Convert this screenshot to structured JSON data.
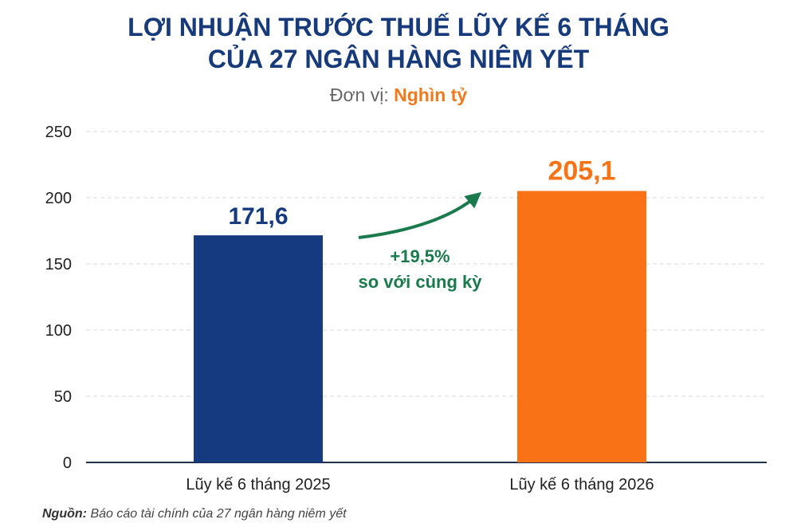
{
  "title_lines": [
    "LỢI NHUẬN TRƯỚC THUẾ LŨY KẾ 6 THÁNG",
    "CỦA 27 NGÂN HÀNG NIÊM YẾT"
  ],
  "unit": {
    "label": "Đơn vị:",
    "value": "Nghìn tỷ"
  },
  "annotation": {
    "change": "+19,5%",
    "note": "so với cùng kỳ"
  },
  "source": {
    "label": "Nguồn:",
    "text": "Báo cáo tài chính của 27 ngân hàng niêm yết"
  },
  "colors": {
    "bar_2025": "#163a80",
    "bar_2026": "#f97316",
    "growth": "#1a7a4c",
    "title": "#173a7a"
  },
  "chart_data": {
    "type": "bar",
    "categories": [
      "Lũy kế 6 tháng 2025",
      "Lũy kế 6 tháng 2026"
    ],
    "values": [
      171.6,
      205.1
    ],
    "value_labels": [
      "171,6",
      "205,1"
    ],
    "yticks": [
      0,
      50,
      100,
      150,
      200,
      250
    ],
    "ylim": [
      0,
      250
    ],
    "grid": true
  }
}
